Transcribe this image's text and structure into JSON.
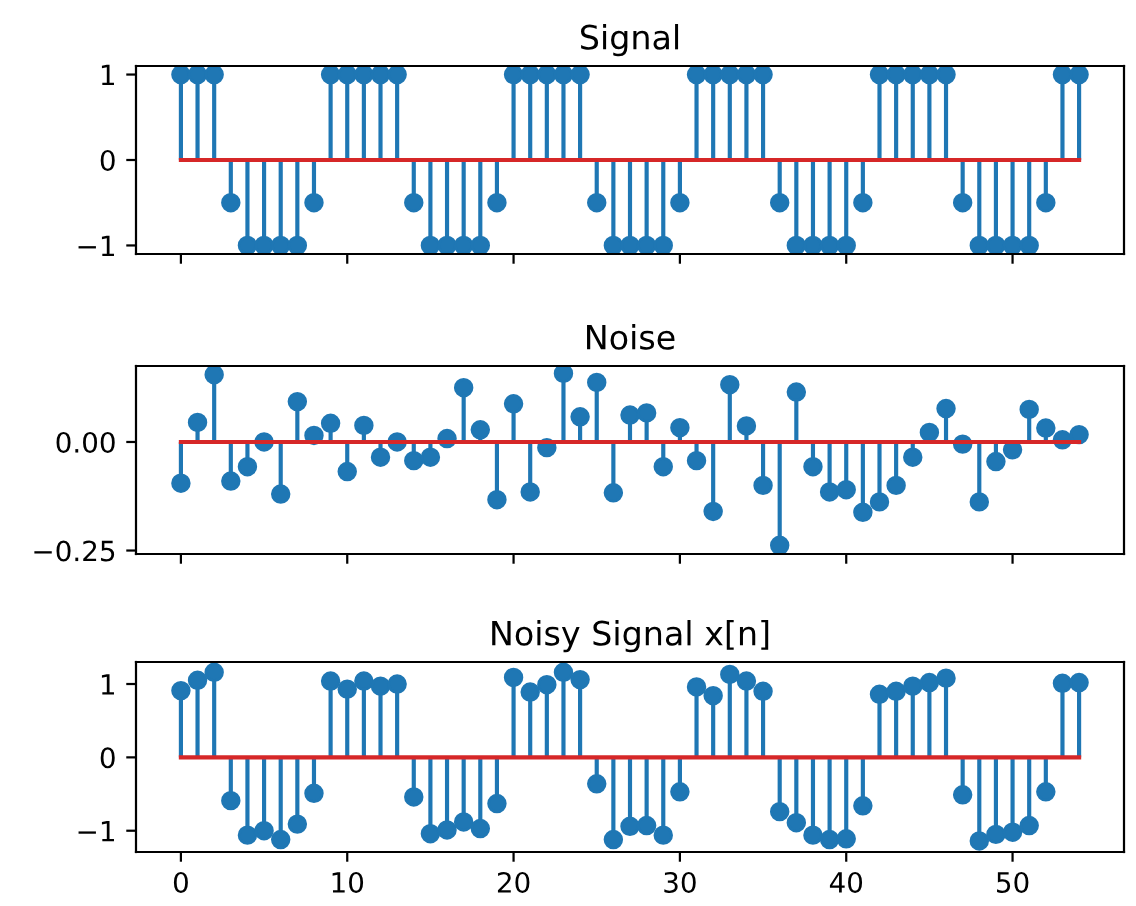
{
  "chart_data": [
    {
      "type": "lollipop",
      "title": "Signal",
      "x": [
        0,
        1,
        2,
        3,
        4,
        5,
        6,
        7,
        8,
        9,
        10,
        11,
        12,
        13,
        14,
        15,
        16,
        17,
        18,
        19,
        20,
        21,
        22,
        23,
        24,
        25,
        26,
        27,
        28,
        29,
        30,
        31,
        32,
        33,
        34,
        35,
        36,
        37,
        38,
        39,
        40,
        41,
        42,
        43,
        44,
        45,
        46,
        47,
        48,
        49,
        50,
        51,
        52,
        53,
        54
      ],
      "series": [
        {
          "color": "#1f77b4",
          "values": [
            1,
            1,
            1,
            -0.5,
            -1,
            -1,
            -1,
            -1,
            -0.5,
            1,
            1,
            1,
            1,
            1,
            -0.5,
            -1,
            -1,
            -1,
            -1,
            -0.5,
            1,
            1,
            1,
            1,
            1,
            -0.5,
            -1,
            -1,
            -1,
            -1,
            -0.5,
            1,
            1,
            1,
            1,
            1,
            -0.5,
            -1,
            -1,
            -1,
            -1,
            -0.5,
            1,
            1,
            1,
            1,
            1,
            -0.5,
            -1,
            -1,
            -1,
            -1,
            -0.5,
            1,
            1
          ]
        }
      ],
      "ref_lines": [
        {
          "axis": "y",
          "value": 0,
          "color": "#d62728"
        }
      ],
      "marker": "circle",
      "xlim": [
        -2.7,
        56.7
      ],
      "xticks": [
        0,
        10,
        20,
        30,
        40,
        50
      ],
      "ylim": [
        -1.1,
        1.1
      ],
      "yticks": [
        {
          "value": -1,
          "label": "−1"
        },
        0,
        1
      ],
      "tick_labels": "y",
      "grid": false,
      "legend": false
    },
    {
      "type": "lollipop",
      "title": "Noise",
      "x": [
        0,
        1,
        2,
        3,
        4,
        5,
        6,
        7,
        8,
        9,
        10,
        11,
        12,
        13,
        14,
        15,
        16,
        17,
        18,
        19,
        20,
        21,
        22,
        23,
        24,
        25,
        26,
        27,
        28,
        29,
        30,
        31,
        32,
        33,
        34,
        35,
        36,
        37,
        38,
        39,
        40,
        41,
        42,
        43,
        44,
        45,
        46,
        47,
        48,
        49,
        50,
        51,
        52,
        53,
        54
      ],
      "series": [
        {
          "color": "#1f77b4",
          "values": [
            -0.095,
            0.045,
            0.155,
            -0.09,
            -0.057,
            0,
            -0.12,
            0.093,
            0.015,
            0.043,
            -0.068,
            0.038,
            -0.035,
            0,
            -0.043,
            -0.035,
            0.008,
            0.125,
            0.028,
            -0.133,
            0.088,
            -0.115,
            -0.013,
            0.158,
            0.058,
            0.137,
            -0.117,
            0.062,
            0.067,
            -0.057,
            0.033,
            -0.043,
            -0.16,
            0.132,
            0.037,
            -0.1,
            -0.238,
            0.115,
            -0.057,
            -0.115,
            -0.11,
            -0.162,
            -0.138,
            -0.1,
            -0.035,
            0.022,
            0.077,
            -0.005,
            -0.138,
            -0.045,
            -0.018,
            0.075,
            0.032,
            0.005,
            0.017
          ]
        }
      ],
      "ref_lines": [
        {
          "axis": "y",
          "value": 0,
          "color": "#d62728"
        }
      ],
      "marker": "circle",
      "xlim": [
        -2.7,
        56.7
      ],
      "xticks": [
        0,
        10,
        20,
        30,
        40,
        50
      ],
      "ylim": [
        -0.258,
        0.175
      ],
      "yticks": [
        {
          "value": -0.25,
          "label": "−0.25"
        },
        {
          "value": 0,
          "label": "0.00"
        }
      ],
      "tick_labels": "y",
      "grid": false,
      "legend": false
    },
    {
      "type": "lollipop",
      "title": "Noisy Signal x[n]",
      "x": [
        0,
        1,
        2,
        3,
        4,
        5,
        6,
        7,
        8,
        9,
        10,
        11,
        12,
        13,
        14,
        15,
        16,
        17,
        18,
        19,
        20,
        21,
        22,
        23,
        24,
        25,
        26,
        27,
        28,
        29,
        30,
        31,
        32,
        33,
        34,
        35,
        36,
        37,
        38,
        39,
        40,
        41,
        42,
        43,
        44,
        45,
        46,
        47,
        48,
        49,
        50,
        51,
        52,
        53,
        54
      ],
      "series": [
        {
          "color": "#1f77b4",
          "values": [
            0.91,
            1.05,
            1.16,
            -0.59,
            -1.06,
            -1.0,
            -1.12,
            -0.91,
            -0.49,
            1.04,
            0.93,
            1.04,
            0.97,
            1.0,
            -0.54,
            -1.04,
            -0.99,
            -0.88,
            -0.97,
            -0.63,
            1.09,
            0.89,
            0.99,
            1.16,
            1.06,
            -0.36,
            -1.12,
            -0.94,
            -0.93,
            -1.06,
            -0.47,
            0.96,
            0.84,
            1.13,
            1.04,
            0.9,
            -0.74,
            -0.89,
            -1.06,
            -1.12,
            -1.11,
            -0.66,
            0.86,
            0.9,
            0.97,
            1.02,
            1.08,
            -0.51,
            -1.14,
            -1.05,
            -1.02,
            -0.93,
            -0.47,
            1.01,
            1.02
          ]
        }
      ],
      "ref_lines": [
        {
          "axis": "y",
          "value": 0,
          "color": "#d62728"
        }
      ],
      "marker": "circle",
      "xlim": [
        -2.7,
        56.7
      ],
      "xticks": [
        0,
        10,
        20,
        30,
        40,
        50
      ],
      "ylim": [
        -1.29,
        1.3
      ],
      "yticks": [
        {
          "value": -1,
          "label": "−1"
        },
        0,
        1
      ],
      "grid": false,
      "legend": false
    }
  ]
}
